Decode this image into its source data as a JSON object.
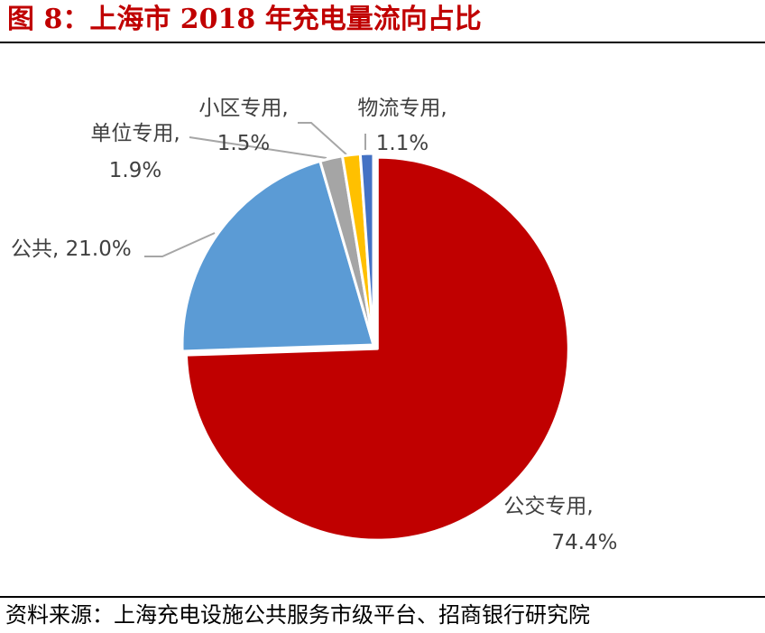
{
  "figure": {
    "title": "图 8：上海市 2018 年充电量流向占比",
    "source": "资料来源：上海充电设施公共服务市级平台、招商银行研究院"
  },
  "chart_data": {
    "type": "pie",
    "title": "",
    "start_angle_deg": 0,
    "direction": "clockwise",
    "slices": [
      {
        "name": "公交专用",
        "value": 74.4,
        "value_label": "74.4%",
        "color": "#C00000"
      },
      {
        "name": "公共",
        "value": 21.0,
        "value_label": "21.0%",
        "color": "#5B9BD5"
      },
      {
        "name": "单位专用",
        "value": 1.9,
        "value_label": "1.9%",
        "color": "#A5A5A5"
      },
      {
        "name": "小区专用",
        "value": 1.5,
        "value_label": "1.5%",
        "color": "#FFC000"
      },
      {
        "name": "物流专用",
        "value": 1.1,
        "value_label": "1.1%",
        "color": "#4472C4"
      }
    ],
    "legend": "none",
    "data_labels": "category name and percentage"
  }
}
